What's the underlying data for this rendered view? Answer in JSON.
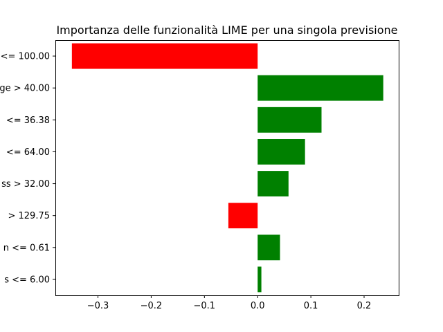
{
  "chart_data": {
    "type": "bar",
    "orientation": "horizontal",
    "title": "Importanza delle funzionalità LIME per una singola previsione",
    "xlabel": "",
    "ylabel": "",
    "xlim": [
      -0.38,
      0.265
    ],
    "xticks": [
      -0.3,
      -0.2,
      -0.1,
      0,
      0.1,
      0.2
    ],
    "xtick_labels": [
      "−0.3",
      "−0.2",
      "−0.1",
      "0.0",
      "0.1",
      "0.2"
    ],
    "categories": [
      "<= 100.00",
      "ge > 40.00",
      "<= 36.38",
      "<= 64.00",
      "ss > 32.00",
      "> 129.75",
      "n <= 0.61",
      "s <= 6.00"
    ],
    "values": [
      -0.349,
      0.236,
      0.12,
      0.089,
      0.058,
      -0.055,
      0.042,
      0.007
    ],
    "colors": {
      "positive": "#008000",
      "negative": "#ff0000"
    },
    "grid": false,
    "legend": "none"
  }
}
